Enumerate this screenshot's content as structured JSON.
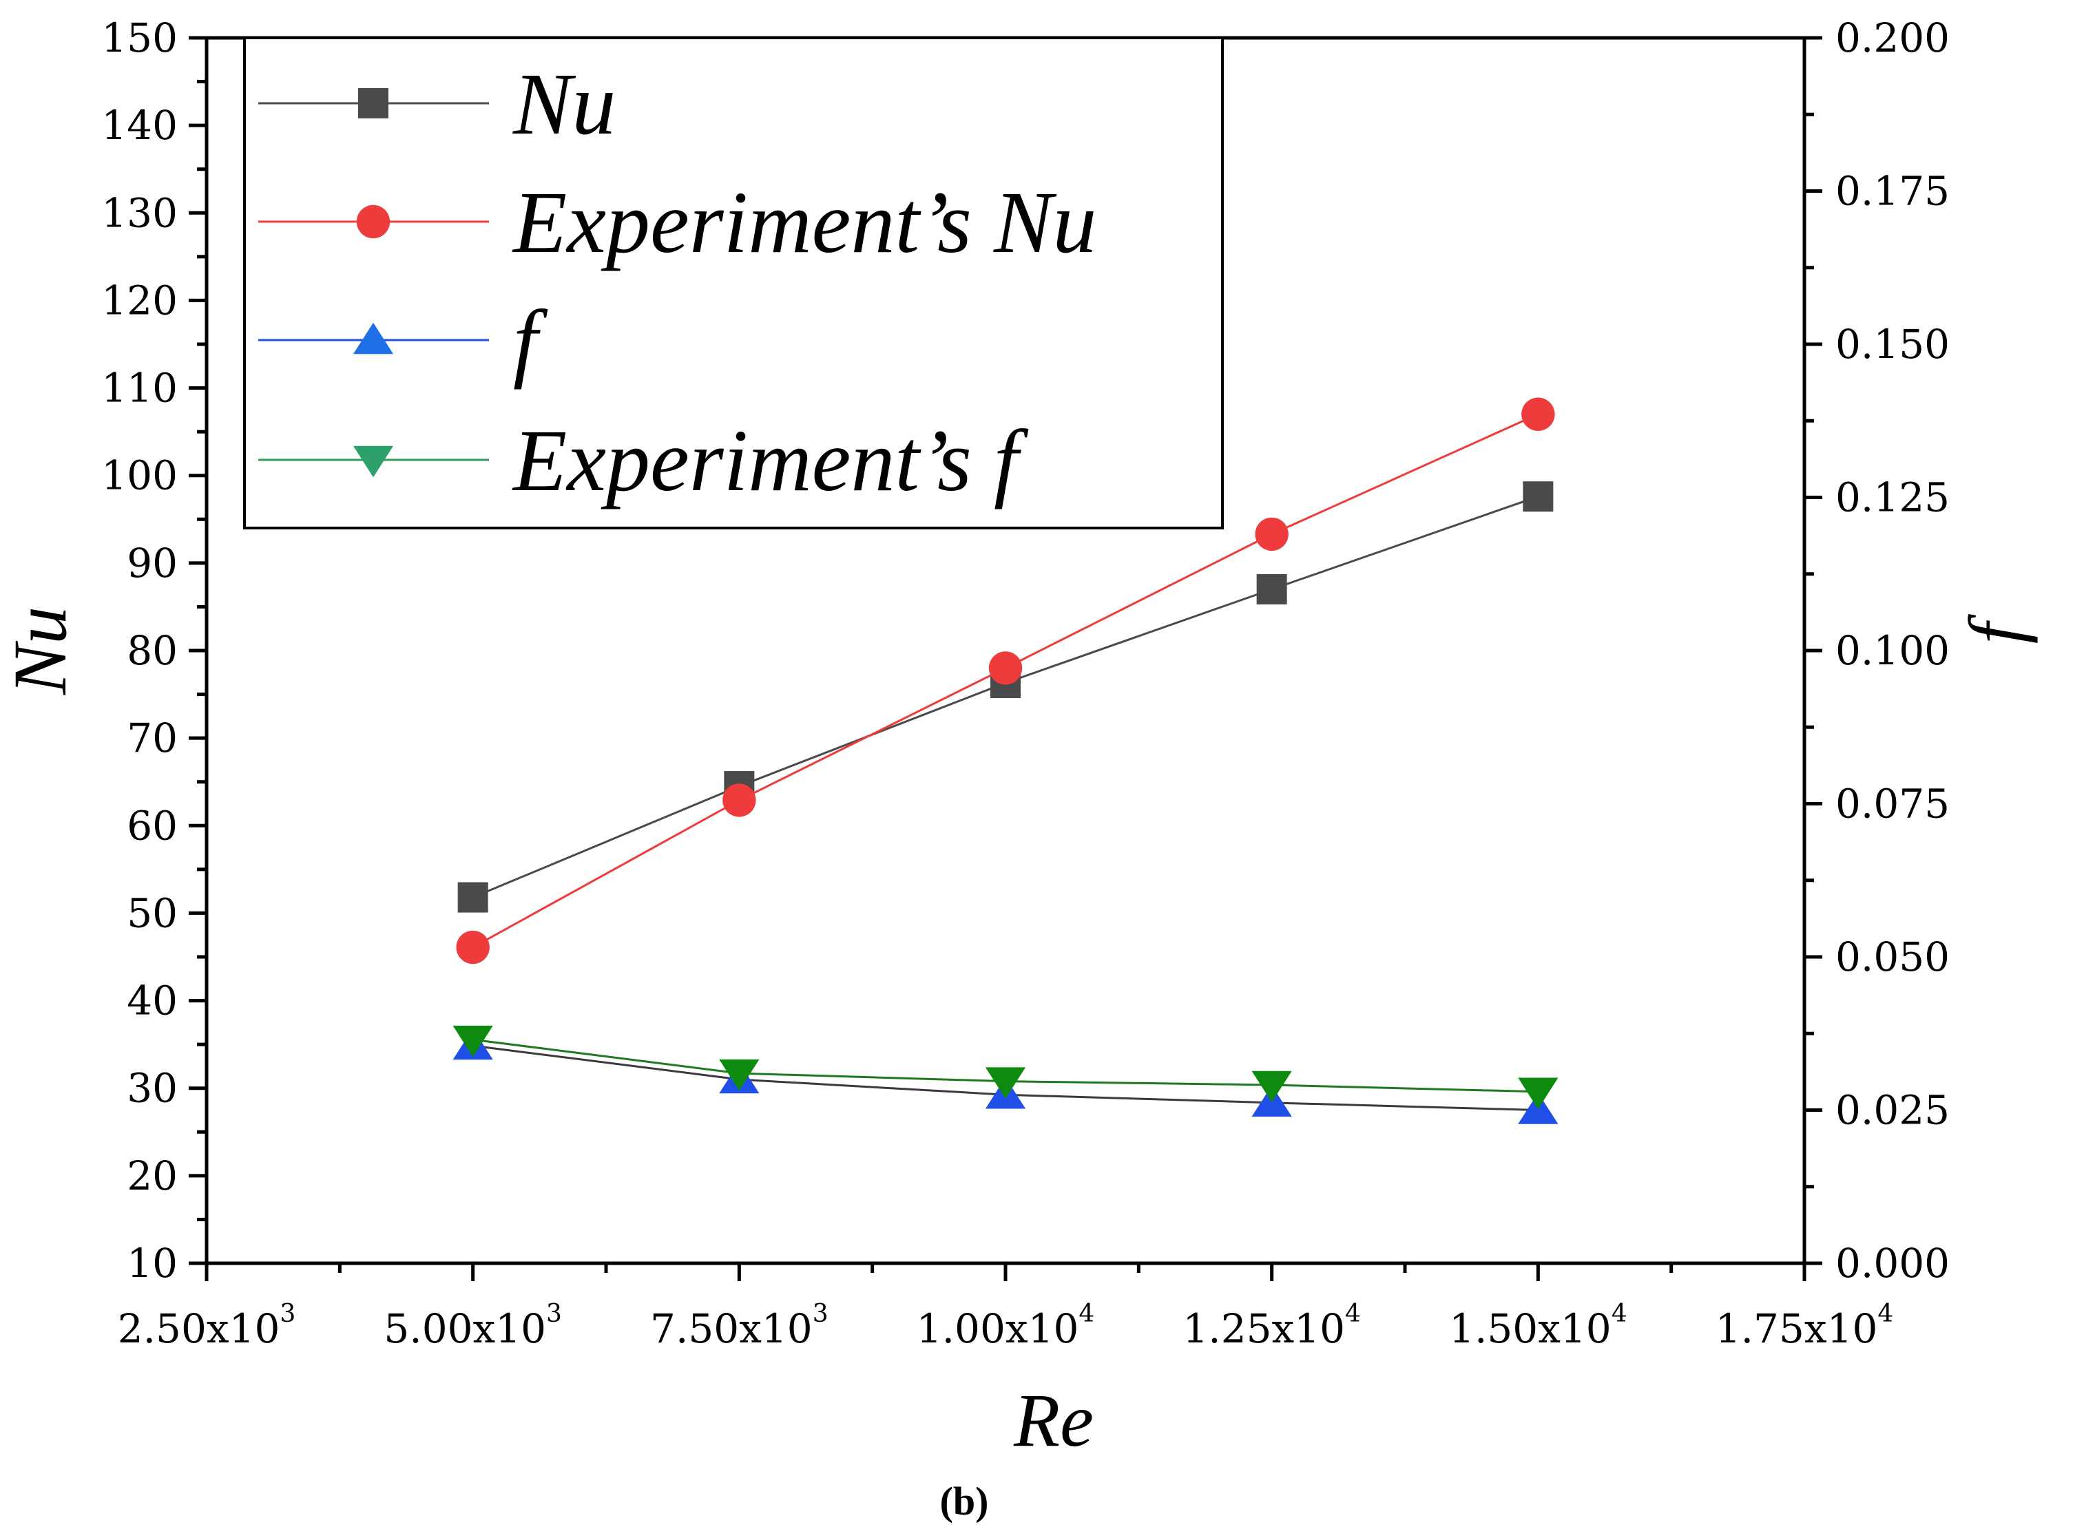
{
  "chart_data": {
    "type": "line",
    "title": "",
    "caption": "(b)",
    "x": [
      5000,
      7500,
      10000,
      12500,
      15000
    ],
    "xlabel": "Re",
    "ylabel_left": "Nu",
    "ylabel_right": "f",
    "xlim": [
      2500,
      17500
    ],
    "ylim_left": [
      10,
      150
    ],
    "ylim_right": [
      0.0,
      0.2
    ],
    "x_tick_values": [
      2500,
      5000,
      7500,
      10000,
      12500,
      15000,
      17500
    ],
    "x_ticks": [
      {
        "mantissa": "2.50x10",
        "exp": "3"
      },
      {
        "mantissa": "5.00x10",
        "exp": "3"
      },
      {
        "mantissa": "7.50x10",
        "exp": "3"
      },
      {
        "mantissa": "1.00x10",
        "exp": "4"
      },
      {
        "mantissa": "1.25x10",
        "exp": "4"
      },
      {
        "mantissa": "1.50x10",
        "exp": "4"
      },
      {
        "mantissa": "1.75x10",
        "exp": "4"
      }
    ],
    "y_left_tick_values": [
      10,
      20,
      30,
      40,
      50,
      60,
      70,
      80,
      90,
      100,
      110,
      120,
      130,
      140,
      150
    ],
    "y_left_ticks": [
      "10",
      "20",
      "30",
      "40",
      "50",
      "60",
      "70",
      "80",
      "90",
      "100",
      "110",
      "120",
      "130",
      "140",
      "150"
    ],
    "y_right_tick_values": [
      0.0,
      0.025,
      0.05,
      0.075,
      0.1,
      0.125,
      0.15,
      0.175,
      0.2
    ],
    "y_right_ticks": [
      "0.000",
      "0.025",
      "0.050",
      "0.075",
      "0.100",
      "0.125",
      "0.150",
      "0.175",
      "0.200"
    ],
    "legend_position": "top-left",
    "series": [
      {
        "name": "Nu",
        "axis": "left",
        "marker": "square",
        "color": "#4a4a4a",
        "marker_color": "#4a4a4a",
        "values": [
          51.8,
          64.5,
          76.3,
          87.0,
          97.6
        ]
      },
      {
        "name": "Experiment’s Nu",
        "axis": "left",
        "marker": "circle",
        "color": "#ee3b3b",
        "marker_color": "#ee3b3b",
        "values": [
          46.1,
          62.9,
          78.0,
          93.3,
          107.0
        ]
      },
      {
        "name": "f",
        "axis": "right",
        "marker": "triangle-up",
        "color": "#3a3a3a",
        "marker_color": "#1f4fe6",
        "values": [
          0.0355,
          0.03,
          0.0275,
          0.0262,
          0.025
        ]
      },
      {
        "name": "Experiment’s f",
        "axis": "right",
        "marker": "triangle-down",
        "color": "#1f7a1f",
        "marker_color": "#0e8a0e",
        "values": [
          0.0365,
          0.031,
          0.0297,
          0.0291,
          0.028
        ]
      }
    ],
    "legend_line_colors": [
      "#4a4a4a",
      "#ee3b3b",
      "#1f4fe6",
      "#2e9e5a"
    ],
    "legend_marker_colors": [
      "#4a4a4a",
      "#ee3b3b",
      "#1f6fe6",
      "#2ea06a"
    ]
  }
}
